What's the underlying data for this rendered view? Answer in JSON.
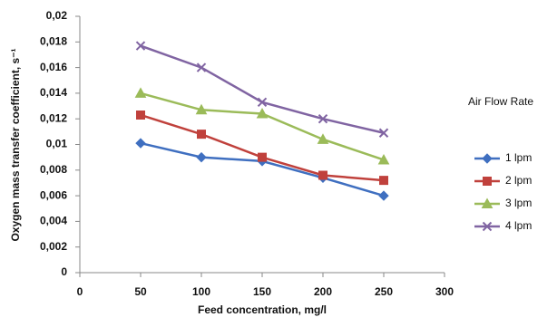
{
  "chart_data": {
    "type": "line",
    "x_label": "Feed concentration, mg/l",
    "y_label": "Oxygen mass transfer coefficient, s⁻¹",
    "legend_title": "Air Flow Rate",
    "legend": "right",
    "grid": false,
    "x": [
      50,
      100,
      150,
      200,
      250
    ],
    "xlim": [
      0,
      300
    ],
    "xticks": [
      0,
      50,
      100,
      150,
      200,
      250,
      300
    ],
    "ylim": [
      0,
      0.02
    ],
    "yticks": [
      0,
      {
        "value": 0.002,
        "label": "0,002"
      },
      {
        "value": 0.004,
        "label": "0,004"
      },
      {
        "value": 0.006,
        "label": "0,006"
      },
      {
        "value": 0.008,
        "label": "0,008"
      },
      {
        "value": 0.01,
        "label": "0,01"
      },
      {
        "value": 0.012,
        "label": "0,012"
      },
      {
        "value": 0.014,
        "label": "0,014"
      },
      {
        "value": 0.016,
        "label": "0,016"
      },
      {
        "value": 0.018,
        "label": "0,018"
      },
      {
        "value": 0.02,
        "label": "0,02"
      }
    ],
    "series": [
      {
        "name": "1 lpm",
        "color": "#3f6fc0",
        "marker": "diamond",
        "values": [
          0.0101,
          0.009,
          0.0087,
          0.0074,
          0.006
        ]
      },
      {
        "name": "2 lpm",
        "color": "#c0413c",
        "marker": "square",
        "values": [
          0.0123,
          0.0108,
          0.009,
          0.0076,
          0.0072
        ]
      },
      {
        "name": "3 lpm",
        "color": "#9bbb59",
        "marker": "triangle",
        "values": [
          0.014,
          0.0127,
          0.0124,
          0.0104,
          0.0088
        ]
      },
      {
        "name": "4 lpm",
        "color": "#8064a2",
        "marker": "x",
        "values": [
          0.0177,
          0.016,
          0.0133,
          0.012,
          0.0109
        ]
      }
    ]
  }
}
